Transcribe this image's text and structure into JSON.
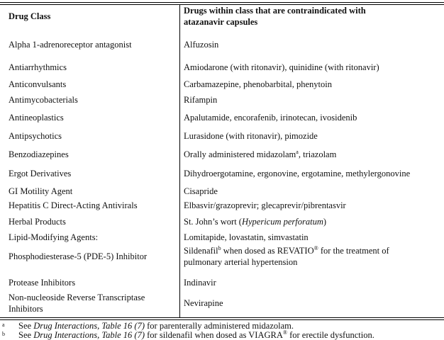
{
  "header": {
    "col1": "Drug Class",
    "col2_line1": "Drugs within class that are contraindicated with",
    "col2_line2": "atazanavir capsules"
  },
  "rows": [
    {
      "cls": "Alpha 1-adrenoreceptor antagonist",
      "drugs": "Alfuzosin"
    },
    {
      "cls": "Antiarrhythmics",
      "drugs": "Amiodarone (with ritonavir), quinidine (with ritonavir)"
    },
    {
      "cls": "Anticonvulsants",
      "drugs": "Carbamazepine, phenobarbital, phenytoin"
    },
    {
      "cls": "Antimycobacterials",
      "drugs": "Rifampin"
    },
    {
      "cls": "Antineoplastics",
      "drugs": "Apalutamide, encorafenib, irinotecan, ivosidenib"
    },
    {
      "cls": "Antipsychotics",
      "drugs": "Lurasidone (with ritonavir), pimozide"
    },
    {
      "cls": "Benzodiazepines",
      "drugs": "Orally administered midazolam",
      "sup": "a",
      "drugs_after": ", triazolam"
    },
    {
      "cls": "Ergot Derivatives",
      "drugs": "Dihydroergotamine, ergonovine, ergotamine, methylergonovine"
    },
    {
      "cls": "GI Motility Agent",
      "drugs": "Cisapride"
    },
    {
      "cls": "Hepatitis C Direct-Acting Antivirals",
      "drugs": "Elbasvir/grazoprevir; glecaprevir/pibrentasvir"
    },
    {
      "cls": "Herbal Products",
      "drugs": "St. John’s wort (",
      "italic": "Hypericum perforatum",
      "drugs_after": ")"
    },
    {
      "cls": "Lipid-Modifying Agents:",
      "drugs": "Lomitapide, lovastatin, simvastatin"
    },
    {
      "cls": "Phosphodiesterase-5 (PDE-5) Inhibitor",
      "drugs": "Sildenafil",
      "sup": "b",
      "drugs_after": " when dosed as REVATIO",
      "sup2": "®",
      "drugs_after2": " for the treatment of",
      "drugs_line2": "pulmonary arterial hypertension"
    },
    {
      "cls": "Protease Inhibitors",
      "drugs": "Indinavir"
    },
    {
      "cls": "Non-nucleoside Reverse Transcriptase",
      "cls_line2": "Inhibitors",
      "drugs": "Nevirapine"
    }
  ],
  "footnotes": [
    {
      "mark": "a",
      "pre": "See ",
      "italic": "Drug Interactions, Table 16 (7)",
      "post": " for parenterally administered midazolam."
    },
    {
      "mark": "b",
      "pre": "See ",
      "italic": "Drug Interactions, Table 16 (7)",
      "post": " for sildenafil when dosed as VIAGRA",
      "sup": "®",
      "post2": " for erectile dysfunction."
    }
  ]
}
